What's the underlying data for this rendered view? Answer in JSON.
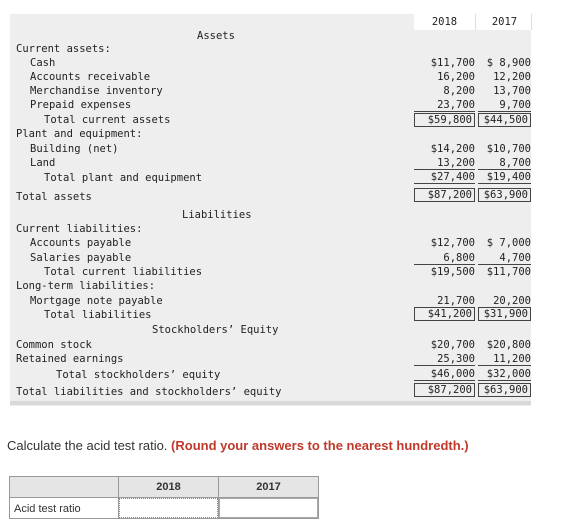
{
  "headers": {
    "y2018": "2018",
    "y2017": "2017"
  },
  "sections": {
    "assets": "Assets",
    "liabilities": "Liabilities",
    "equity": "Stockholders’ Equity"
  },
  "rows": [
    {
      "label": "Current assets:",
      "v2018": "",
      "v2017": ""
    },
    {
      "label": "Cash",
      "v2018": "$11,700",
      "v2017": "$ 8,900"
    },
    {
      "label": "Accounts receivable",
      "v2018": "16,200",
      "v2017": "12,200"
    },
    {
      "label": "Merchandise inventory",
      "v2018": "8,200",
      "v2017": "13,700"
    },
    {
      "label": "Prepaid expenses",
      "v2018": "23,700",
      "v2017": "9,700"
    },
    {
      "label": "Total current assets",
      "v2018": "$59,800",
      "v2017": "$44,500"
    },
    {
      "label": "Plant and equipment:",
      "v2018": "",
      "v2017": ""
    },
    {
      "label": "Building (net)",
      "v2018": "$14,200",
      "v2017": "$10,700"
    },
    {
      "label": "Land",
      "v2018": "13,200",
      "v2017": "8,700"
    },
    {
      "label": "Total plant and equipment",
      "v2018": "$27,400",
      "v2017": "$19,400"
    },
    {
      "label": "Total assets",
      "v2018": "$87,200",
      "v2017": "$63,900"
    },
    {
      "label": "Current liabilities:",
      "v2018": "",
      "v2017": ""
    },
    {
      "label": "Accounts payable",
      "v2018": "$12,700",
      "v2017": "$ 7,000"
    },
    {
      "label": "Salaries payable",
      "v2018": "6,800",
      "v2017": "4,700"
    },
    {
      "label": "Total current liabilities",
      "v2018": "$19,500",
      "v2017": "$11,700"
    },
    {
      "label": "Long-term liabilities:",
      "v2018": "",
      "v2017": ""
    },
    {
      "label": "Mortgage note payable",
      "v2018": "21,700",
      "v2017": "20,200"
    },
    {
      "label": "Total liabilities",
      "v2018": "$41,200",
      "v2017": "$31,900"
    },
    {
      "label": "Common stock",
      "v2018": "$20,700",
      "v2017": "$20,800"
    },
    {
      "label": "Retained earnings",
      "v2018": "25,300",
      "v2017": "11,200"
    },
    {
      "label": "Total stockholders’ equity",
      "v2018": "$46,000",
      "v2017": "$32,000"
    },
    {
      "label": "Total liabilities and stockholders’ equity",
      "v2018": "$87,200",
      "v2017": "$63,900"
    }
  ],
  "question": {
    "prefix": "Calculate the acid test ratio. ",
    "bold": "(Round your answers to the nearest hundredth.)"
  },
  "answer_table": {
    "col2018": "2018",
    "col2017": "2017",
    "row_label": "Acid test ratio",
    "value2018": "",
    "value2017": ""
  }
}
